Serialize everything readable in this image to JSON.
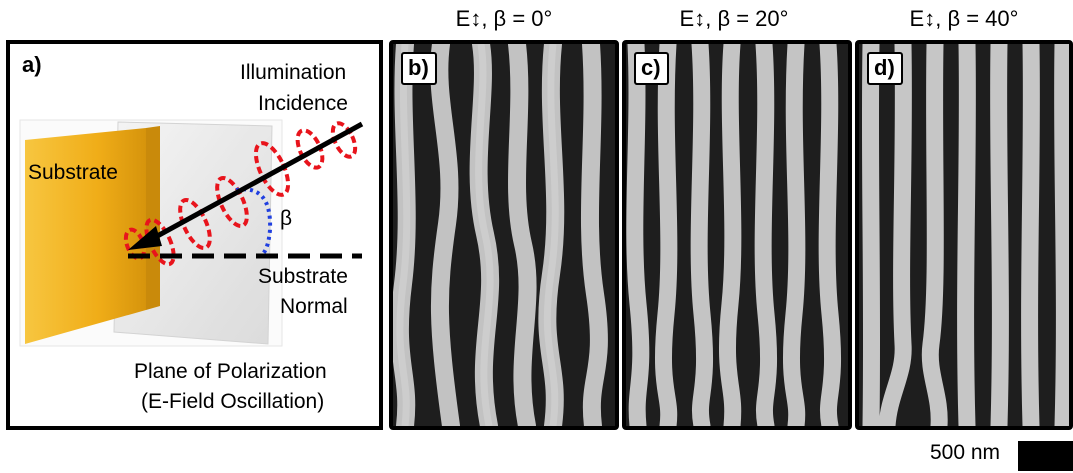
{
  "titles": {
    "b": "E↕, β = 0°",
    "c": "E↕, β = 20°",
    "d": "E↕, β = 40°"
  },
  "panel_a": {
    "tag": "a)",
    "illumination": "Illumination",
    "incidence": "Incidence",
    "substrate": "Substrate",
    "beta": "β",
    "substrate_normal_1": "Substrate",
    "substrate_normal_2": "Normal",
    "plane_1": "Plane of Polarization",
    "plane_2": "(E-Field Oscillation)"
  },
  "tags": {
    "b": "b)",
    "c": "c)",
    "d": "d)"
  },
  "scale": {
    "label": "500 nm"
  },
  "colors": {
    "substrate": "#f2b21a",
    "wave": "#e8141c",
    "angle_arc": "#1f3fe0",
    "sem_bg": "#3a3a3a"
  }
}
